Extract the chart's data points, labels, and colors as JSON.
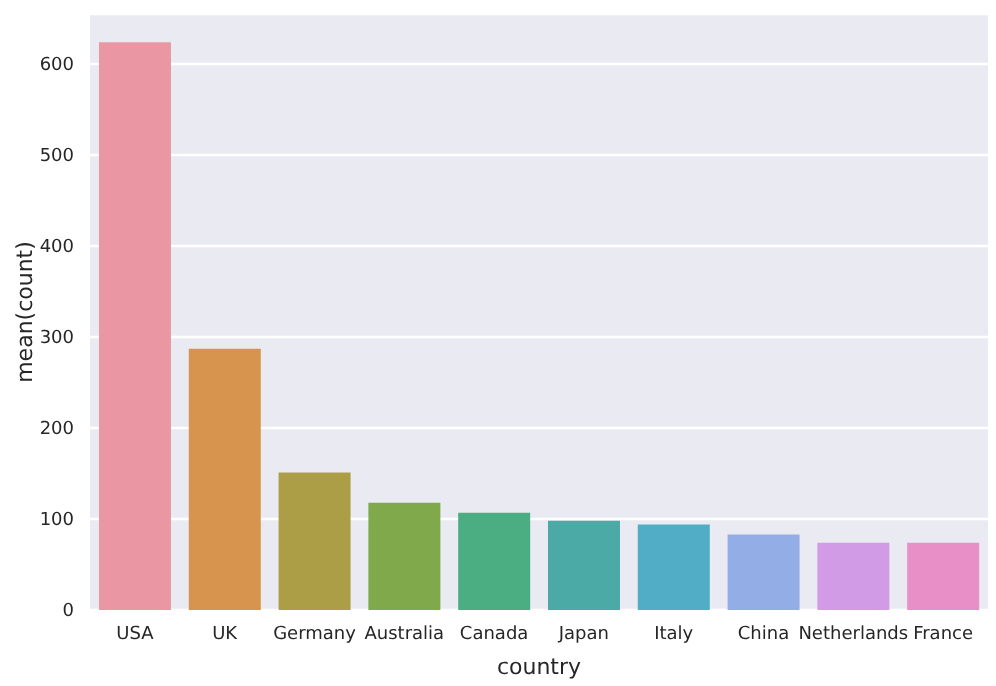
{
  "chart_data": {
    "type": "bar",
    "xlabel": "country",
    "ylabel": "mean(count)",
    "categories": [
      "USA",
      "UK",
      "Germany",
      "Australia",
      "Canada",
      "Japan",
      "Italy",
      "China",
      "Netherlands",
      "France"
    ],
    "values": [
      624,
      287,
      151,
      118,
      107,
      98,
      94,
      83,
      74,
      74
    ],
    "colors": [
      "#ea97a3",
      "#d6944f",
      "#ab9e47",
      "#7fa94a",
      "#4bae82",
      "#4ba9a6",
      "#51acc5",
      "#93aee6",
      "#d29be6",
      "#e88fc8"
    ],
    "ylim": [
      0,
      655
    ],
    "yticks": [
      0,
      100,
      200,
      300,
      400,
      500,
      600
    ],
    "grid": "y"
  }
}
